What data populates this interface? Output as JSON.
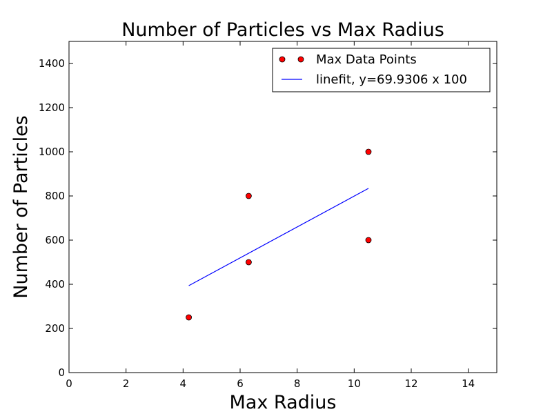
{
  "chart_data": {
    "type": "scatter",
    "title": "Number of Particles vs Max Radius",
    "xlabel": "Max Radius",
    "ylabel": "Number of Particles",
    "xlim": [
      0,
      15
    ],
    "ylim": [
      0,
      1500
    ],
    "xticks": [
      0,
      2,
      4,
      6,
      8,
      10,
      12,
      14
    ],
    "yticks": [
      0,
      200,
      400,
      600,
      800,
      1000,
      1200,
      1400
    ],
    "grid": false,
    "legend_position": "top-right",
    "series": [
      {
        "name": "Max Data Points",
        "kind": "markers",
        "color": "#ff0000",
        "x": [
          4.2,
          6.3,
          6.3,
          10.5,
          10.5
        ],
        "y": [
          250,
          500,
          800,
          600,
          1000
        ]
      },
      {
        "name": "linefit, y=69.9306 x 100",
        "kind": "line",
        "color": "#0000ff",
        "x": [
          4.2,
          10.5
        ],
        "y": [
          393.7,
          834.3
        ]
      }
    ]
  }
}
